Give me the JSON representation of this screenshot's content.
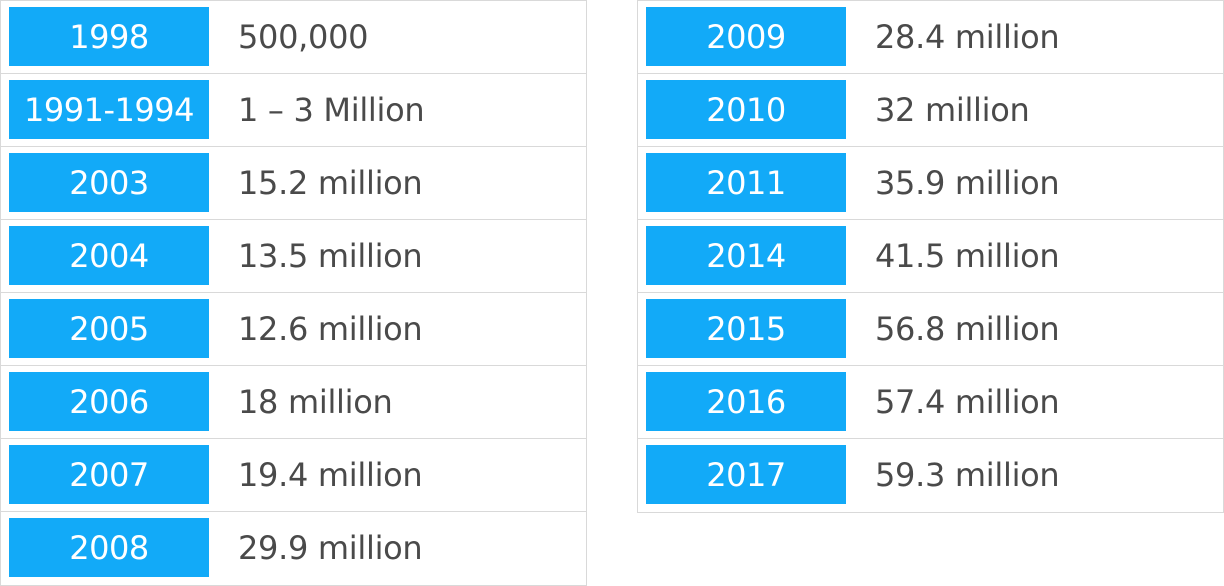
{
  "colors": {
    "year_bg": "#12aaf8",
    "year_text": "#ffffff",
    "value_text": "#4a4a4a",
    "border": "#d9d9d9"
  },
  "left_rows": [
    {
      "year": "1998",
      "value": "500,000"
    },
    {
      "year": "1991-1994",
      "value": "1 – 3 Million"
    },
    {
      "year": "2003",
      "value": "15.2 million"
    },
    {
      "year": "2004",
      "value": "13.5 million"
    },
    {
      "year": "2005",
      "value": "12.6 million"
    },
    {
      "year": "2006",
      "value": "18 million"
    },
    {
      "year": "2007",
      "value": "19.4 million"
    },
    {
      "year": "2008",
      "value": "29.9 million"
    }
  ],
  "right_rows": [
    {
      "year": "2009",
      "value": "28.4 million"
    },
    {
      "year": "2010",
      "value": "32 million"
    },
    {
      "year": "2011",
      "value": "35.9 million"
    },
    {
      "year": "2014",
      "value": "41.5 million"
    },
    {
      "year": "2015",
      "value": "56.8 million"
    },
    {
      "year": "2016",
      "value": "57.4 million"
    },
    {
      "year": "2017",
      "value": "59.3 million"
    }
  ]
}
